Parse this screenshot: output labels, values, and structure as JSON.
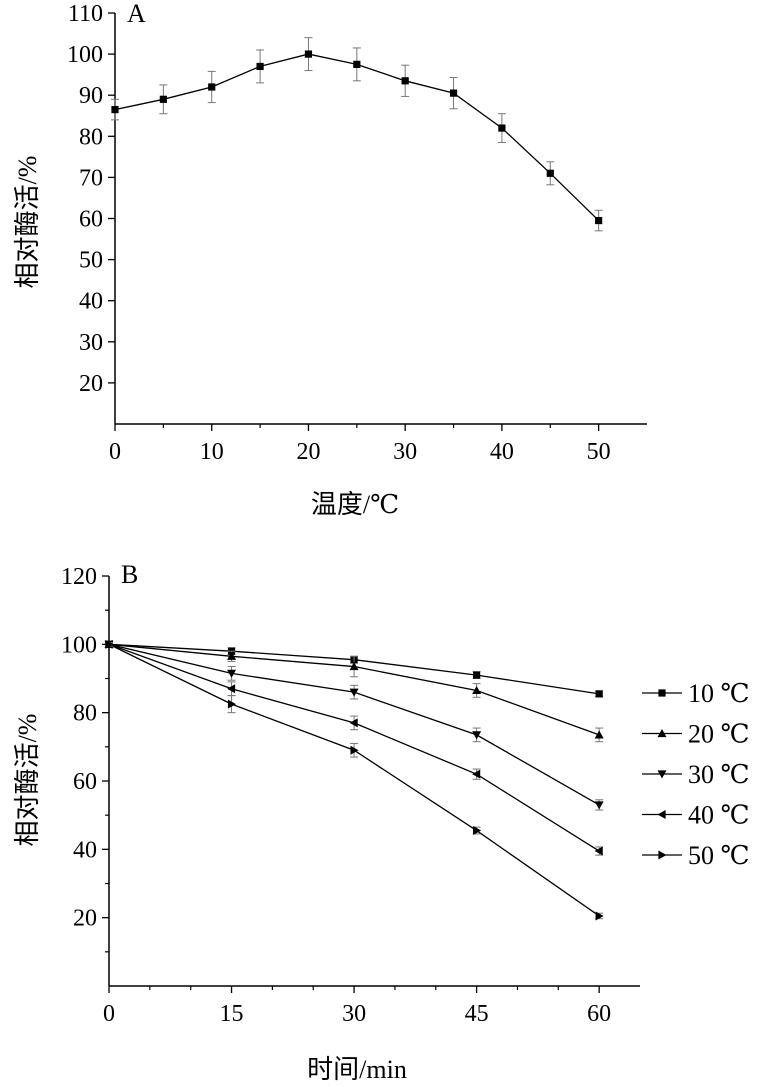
{
  "chart_data": [
    {
      "type": "line",
      "panel_label": "A",
      "xlabel": "温度/℃",
      "ylabel": "相对酶活/%",
      "xlim": [
        0,
        55
      ],
      "ylim": [
        10,
        110
      ],
      "xticks": [
        0,
        10,
        20,
        30,
        40,
        50
      ],
      "yticks": [
        20,
        30,
        40,
        50,
        60,
        70,
        80,
        90,
        100,
        110
      ],
      "grid": false,
      "legend": "none",
      "series": [
        {
          "marker": "square",
          "x": [
            0,
            5,
            10,
            15,
            20,
            25,
            30,
            35,
            40,
            45,
            50
          ],
          "y": [
            86.5,
            89,
            92,
            97,
            100,
            97.5,
            93.5,
            90.5,
            82,
            71,
            59.5
          ],
          "err": [
            2.5,
            3.5,
            3.8,
            4,
            4,
            4,
            3.8,
            3.8,
            3.5,
            2.8,
            2.5
          ]
        }
      ]
    },
    {
      "type": "line",
      "panel_label": "B",
      "xlabel": "时间/min",
      "ylabel": "相对酶活/%",
      "xlim": [
        0,
        65
      ],
      "ylim": [
        0,
        120
      ],
      "xticks": [
        0,
        15,
        30,
        45,
        60
      ],
      "yticks": [
        20,
        40,
        60,
        80,
        100,
        120
      ],
      "grid": false,
      "legend": "right",
      "series": [
        {
          "name": "10 ℃",
          "marker": "square",
          "x": [
            0,
            15,
            30,
            45,
            60
          ],
          "y": [
            100,
            98,
            95.5,
            91,
            85.5
          ],
          "err": [
            0.5,
            1,
            1,
            1,
            0.8
          ]
        },
        {
          "name": "20 ℃",
          "marker": "triangle-up",
          "x": [
            0,
            15,
            30,
            45,
            60
          ],
          "y": [
            100,
            96.5,
            93.5,
            86.5,
            73.5
          ],
          "err": [
            0.5,
            1.5,
            3,
            2,
            2
          ]
        },
        {
          "name": "30 ℃",
          "marker": "triangle-down",
          "x": [
            0,
            15,
            30,
            45,
            60
          ],
          "y": [
            100,
            91.5,
            86,
            73.5,
            53
          ],
          "err": [
            0.5,
            2,
            2,
            2,
            1.5
          ]
        },
        {
          "name": "40 ℃",
          "marker": "triangle-left",
          "x": [
            0,
            15,
            30,
            45,
            60
          ],
          "y": [
            100,
            87,
            77,
            62,
            39.5
          ],
          "err": [
            0.5,
            2,
            2,
            1.5,
            1.2
          ]
        },
        {
          "name": "50 ℃",
          "marker": "triangle-right",
          "x": [
            0,
            15,
            30,
            45,
            60
          ],
          "y": [
            100,
            82.5,
            69,
            45.5,
            20.5
          ],
          "err": [
            0.5,
            2.5,
            2,
            1,
            0.8
          ]
        }
      ]
    }
  ]
}
